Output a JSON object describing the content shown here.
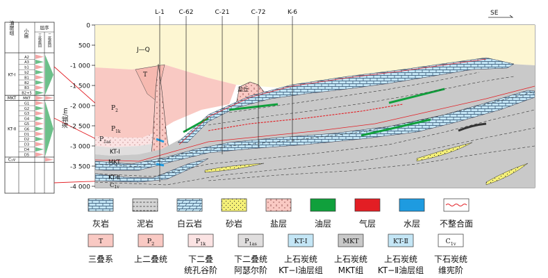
{
  "strat_column": {
    "header_group": "油层组",
    "header_sublayer": "小层",
    "header_sequence": "层序",
    "header_seq3": "三级旋回",
    "header_seq2": "二级旋回",
    "groups": [
      {
        "name": "KT-Ⅰ",
        "layers": [
          "A2",
          "A3",
          "b1",
          "b2",
          "B1",
          "B2",
          "B3",
          "B2+5"
        ]
      },
      {
        "name": "MKT",
        "layers": [
          "MKT"
        ]
      },
      {
        "name": "KT-Ⅱ",
        "layers": [
          "G1",
          "G2",
          "G3",
          "G4",
          "G5",
          "G6",
          "D1",
          "D2",
          "D3",
          "D4",
          "D5"
        ]
      },
      {
        "name": "C₁v",
        "layers": []
      }
    ]
  },
  "section": {
    "direction": "SE",
    "wells": [
      "L-1",
      "C-62",
      "C-21",
      "C-72",
      "K-6"
    ],
    "axis_title": "海拔/m",
    "depth_ticks": [
      "0",
      "500",
      "-1 000",
      "-1 500",
      "-2 000",
      "-2 500",
      "-3 000",
      "-3 500",
      "-4 000"
    ],
    "unit_labels": {
      "jq": "J—Q",
      "t": "T",
      "p2": "P",
      "p2_sub": "2",
      "p1k": "P",
      "p1k_sub": "1k",
      "p1as": "P",
      "p1as_sub": "1as",
      "kt1": "KT-Ⅰ",
      "mkt": "MKT",
      "kt2": "KT-Ⅱ",
      "c1v": "C",
      "c1v_sub": "1v",
      "salt_dome": "盐丘"
    }
  },
  "legend_lithology": [
    {
      "key": "limestone",
      "label": "灰岩"
    },
    {
      "key": "mudstone",
      "label": "泥岩"
    },
    {
      "key": "dolomite",
      "label": "白云岩"
    },
    {
      "key": "sandstone",
      "label": "砂岩"
    },
    {
      "key": "salt",
      "label": "盐层"
    },
    {
      "key": "oil",
      "label": "油层",
      "color": "#10a03c"
    },
    {
      "key": "gas",
      "label": "气层",
      "color": "#e31e24"
    },
    {
      "key": "water",
      "label": "水层",
      "color": "#1e9be0"
    },
    {
      "key": "unconformity",
      "label": "不整合面"
    }
  ],
  "legend_strata": [
    {
      "symbol": "T",
      "sub": "",
      "label": "三叠系",
      "label2": "",
      "color": "#f9c9c3"
    },
    {
      "symbol": "P",
      "sub": "2",
      "label": "上二叠统",
      "label2": "",
      "color": "#f9c9c3"
    },
    {
      "symbol": "P",
      "sub": "1k",
      "label": "下二叠",
      "label2": "统孔谷阶",
      "color": "#fbe3e3"
    },
    {
      "symbol": "P",
      "sub": "1as",
      "label": "下二叠统",
      "label2": "阿瑟尔阶",
      "color": "#e0dede"
    },
    {
      "symbol": "KT-Ⅰ",
      "sub": "",
      "label": "上石炭统",
      "label2": "KT−Ⅰ油层组",
      "color": "#c4e6f6"
    },
    {
      "symbol": "MKT",
      "sub": "",
      "label": "上石炭统",
      "label2": "MKT组",
      "color": "#c9c9c9"
    },
    {
      "symbol": "KT-Ⅱ",
      "sub": "",
      "label": "上石炭统",
      "label2": "KT−Ⅱ油层组",
      "color": "#c4e6f6"
    },
    {
      "symbol": "C",
      "sub": "1v",
      "label": "下石炭统",
      "label2": "维宪阶",
      "color": "#ffffff"
    }
  ]
}
